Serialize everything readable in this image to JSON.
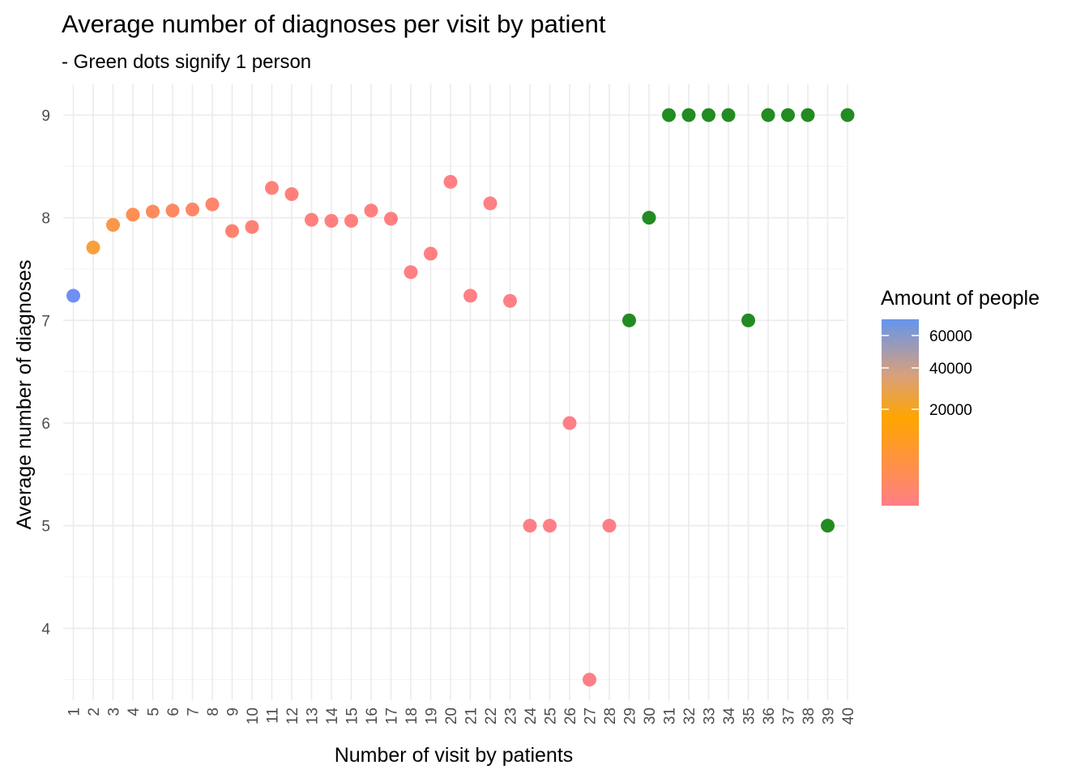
{
  "chart_data": {
    "type": "scatter",
    "title": "Average number of diagnoses per visit by patient",
    "subtitle": "- Green dots signify 1 person",
    "xlabel": "Number of visit by patients",
    "ylabel": "Average number of diagnoses",
    "x_ticks": [
      "1",
      "2",
      "3",
      "4",
      "5",
      "6",
      "7",
      "8",
      "9",
      "10",
      "11",
      "12",
      "13",
      "14",
      "15",
      "16",
      "17",
      "18",
      "19",
      "20",
      "21",
      "22",
      "23",
      "24",
      "25",
      "26",
      "27",
      "28",
      "29",
      "30",
      "31",
      "32",
      "33",
      "34",
      "35",
      "36",
      "37",
      "38",
      "39",
      "40"
    ],
    "y_ticks": [
      "4",
      "5",
      "6",
      "7",
      "8",
      "9"
    ],
    "ylim": [
      3.3,
      9.3
    ],
    "grid": true,
    "legend": {
      "title": "Amount of people",
      "position": "right",
      "ticks": [
        "60000",
        "40000",
        "20000"
      ],
      "colors": {
        "low": "#ff7f86",
        "mid": "#ffa500",
        "high": "#6495ed"
      }
    },
    "single_person_color": "#228b22",
    "points": [
      {
        "x": 1,
        "y": 7.24,
        "color": "#6f8ff5"
      },
      {
        "x": 2,
        "y": 7.71,
        "color": "#f9a03c"
      },
      {
        "x": 3,
        "y": 7.93,
        "color": "#fb9748"
      },
      {
        "x": 4,
        "y": 8.03,
        "color": "#fd8f55"
      },
      {
        "x": 5,
        "y": 8.06,
        "color": "#fe8b5d"
      },
      {
        "x": 6,
        "y": 8.07,
        "color": "#fe8862"
      },
      {
        "x": 7,
        "y": 8.08,
        "color": "#ff8667"
      },
      {
        "x": 8,
        "y": 8.13,
        "color": "#ff856b"
      },
      {
        "x": 9,
        "y": 7.87,
        "color": "#ff8270"
      },
      {
        "x": 10,
        "y": 7.91,
        "color": "#ff8174"
      },
      {
        "x": 11,
        "y": 8.29,
        "color": "#ff8178"
      },
      {
        "x": 12,
        "y": 8.23,
        "color": "#ff807a"
      },
      {
        "x": 13,
        "y": 7.98,
        "color": "#ff807c"
      },
      {
        "x": 14,
        "y": 7.97,
        "color": "#ff807d"
      },
      {
        "x": 15,
        "y": 7.97,
        "color": "#ff7f7f"
      },
      {
        "x": 16,
        "y": 8.07,
        "color": "#ff7f80"
      },
      {
        "x": 17,
        "y": 7.99,
        "color": "#ff7f81"
      },
      {
        "x": 18,
        "y": 7.47,
        "color": "#ff7f82"
      },
      {
        "x": 19,
        "y": 7.65,
        "color": "#ff7f83"
      },
      {
        "x": 20,
        "y": 8.35,
        "color": "#ff7f84"
      },
      {
        "x": 21,
        "y": 7.24,
        "color": "#ff7f84"
      },
      {
        "x": 22,
        "y": 8.14,
        "color": "#ff7f85"
      },
      {
        "x": 23,
        "y": 7.19,
        "color": "#ff7f85"
      },
      {
        "x": 24,
        "y": 5.0,
        "color": "#ff7f86"
      },
      {
        "x": 25,
        "y": 5.0,
        "color": "#ff7f86"
      },
      {
        "x": 26,
        "y": 6.0,
        "color": "#ff7f86"
      },
      {
        "x": 27,
        "y": 3.5,
        "color": "#ff7f86"
      },
      {
        "x": 28,
        "y": 5.0,
        "color": "#ff7f86"
      },
      {
        "x": 29,
        "y": 7.0,
        "color": "#228b22"
      },
      {
        "x": 30,
        "y": 8.0,
        "color": "#228b22"
      },
      {
        "x": 31,
        "y": 9.0,
        "color": "#228b22"
      },
      {
        "x": 32,
        "y": 9.0,
        "color": "#228b22"
      },
      {
        "x": 33,
        "y": 9.0,
        "color": "#228b22"
      },
      {
        "x": 34,
        "y": 9.0,
        "color": "#228b22"
      },
      {
        "x": 35,
        "y": 7.0,
        "color": "#228b22"
      },
      {
        "x": 36,
        "y": 9.0,
        "color": "#228b22"
      },
      {
        "x": 37,
        "y": 9.0,
        "color": "#228b22"
      },
      {
        "x": 38,
        "y": 9.0,
        "color": "#228b22"
      },
      {
        "x": 39,
        "y": 5.0,
        "color": "#228b22"
      },
      {
        "x": 40,
        "y": 9.0,
        "color": "#228b22"
      }
    ]
  }
}
